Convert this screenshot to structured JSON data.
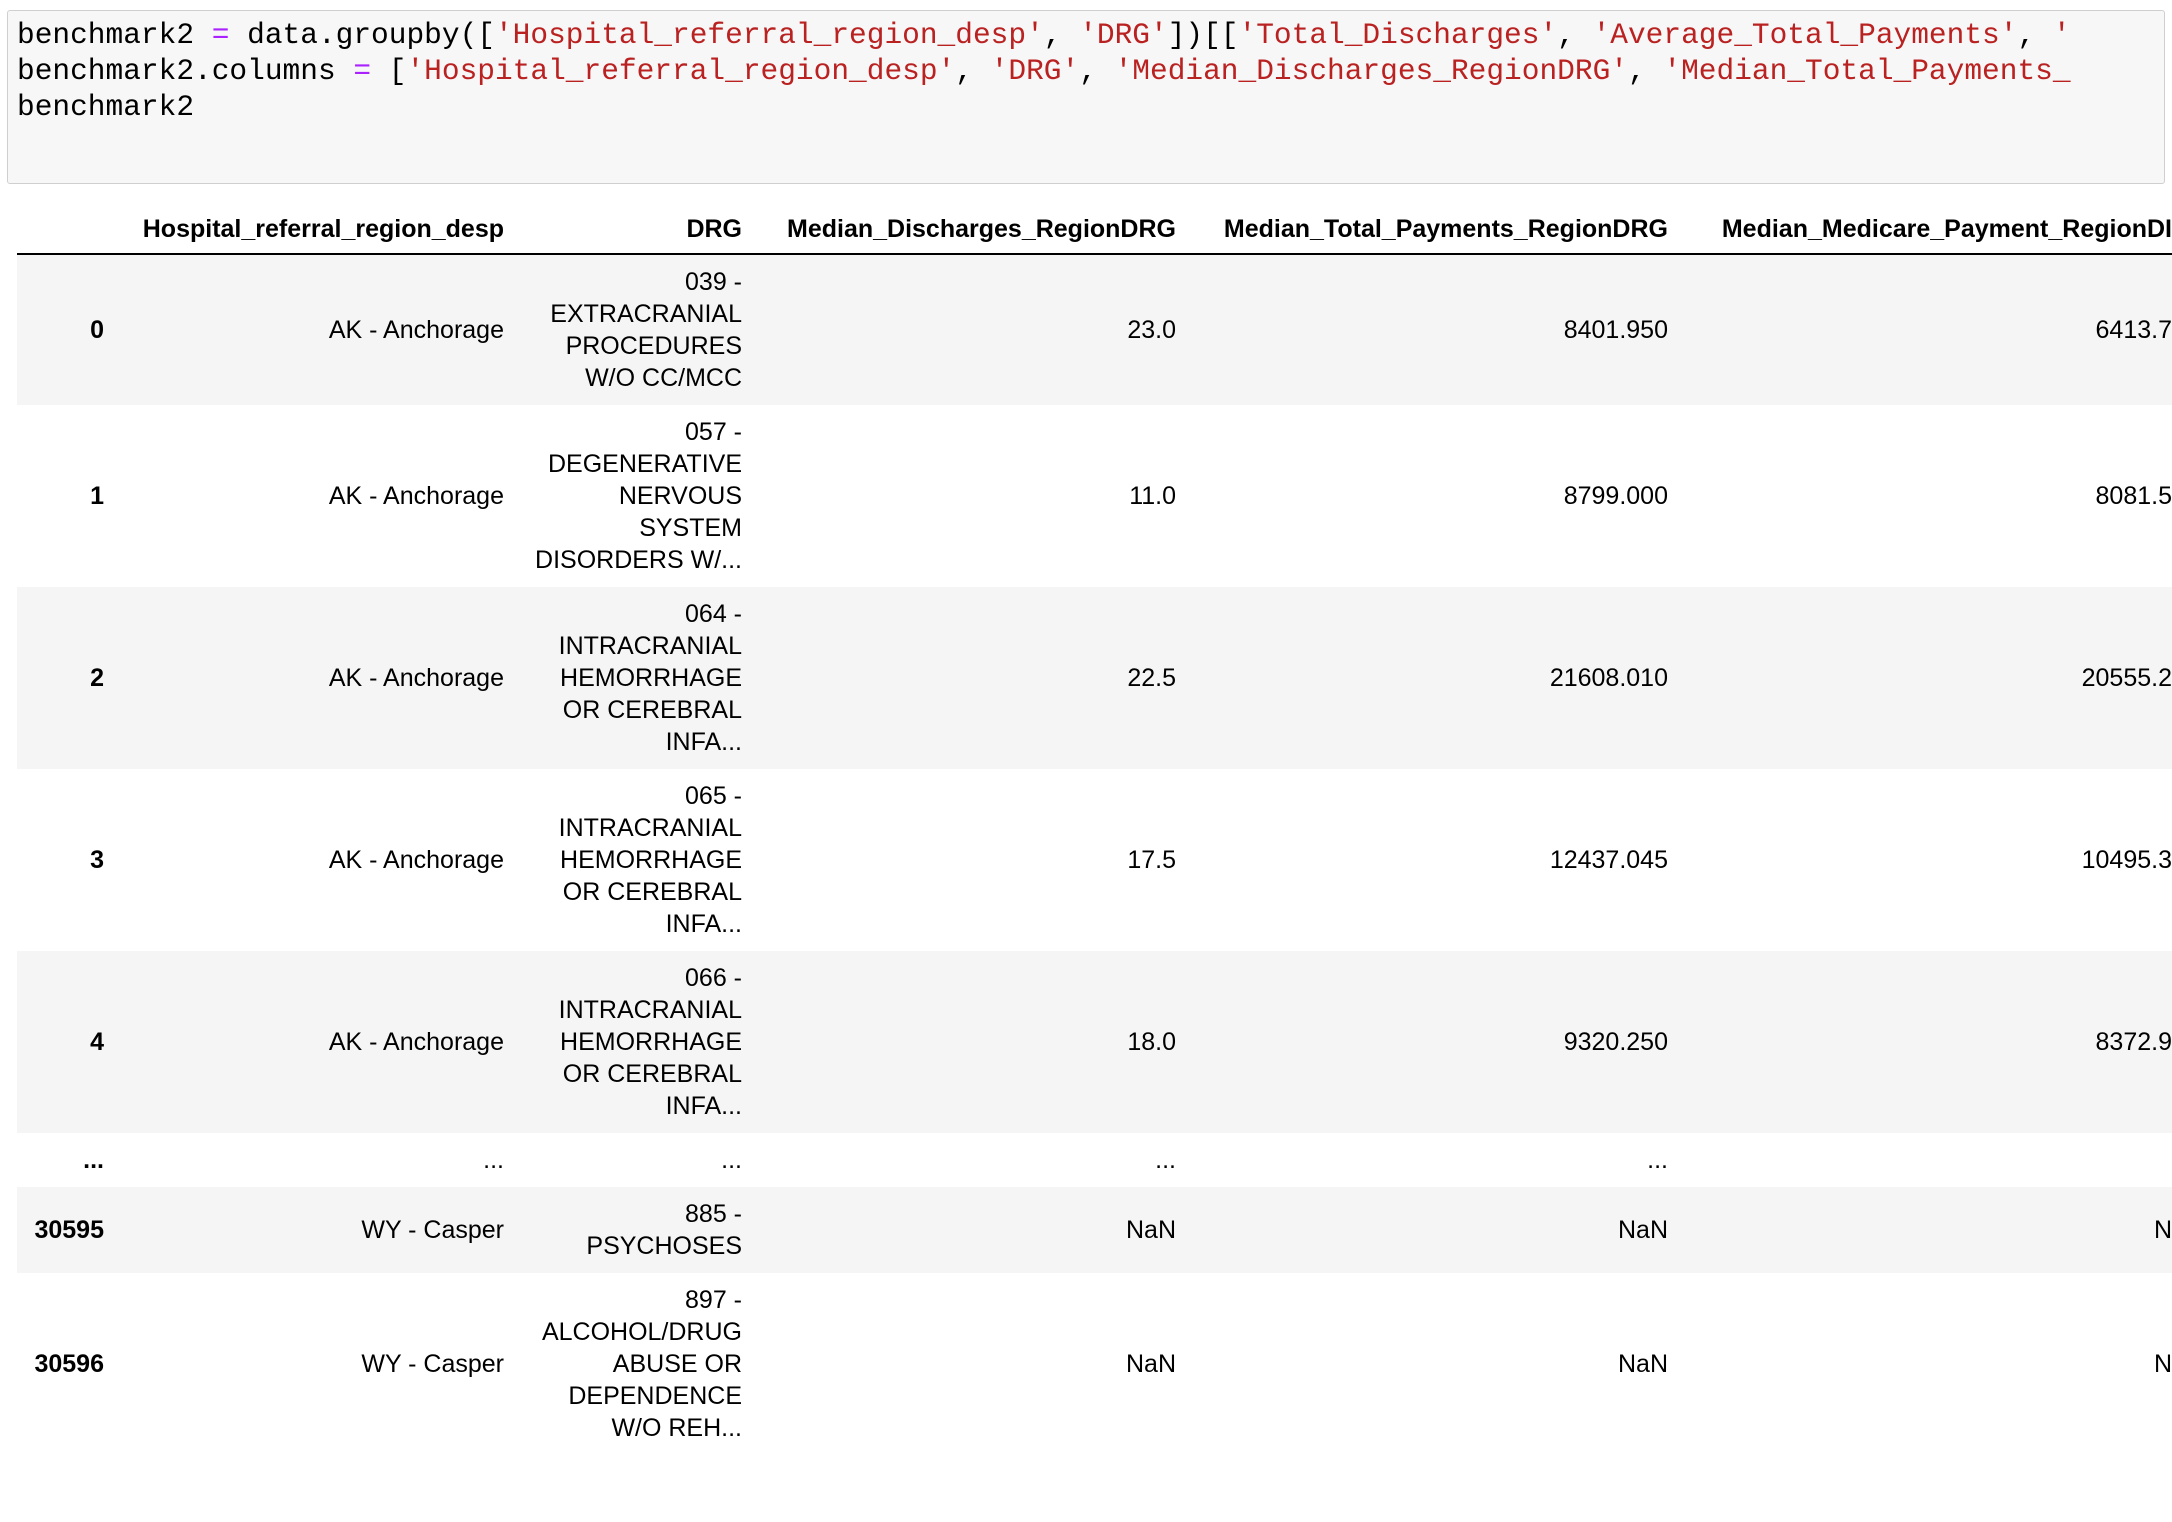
{
  "code": {
    "lines": [
      "benchmark2 = data.groupby(['Hospital_referral_region_desp', 'DRG'])[['Total_Discharges', 'Average_Total_Payments', '",
      "benchmark2.columns = ['Hospital_referral_region_desp', 'DRG', 'Median_Discharges_RegionDRG', 'Median_Total_Payments_",
      "benchmark2"
    ]
  },
  "table": {
    "columns": [
      "Hospital_referral_region_desp",
      "DRG",
      "Median_Discharges_RegionDRG",
      "Median_Total_Payments_RegionDRG",
      "Median_Medicare_Payment_RegionDI"
    ],
    "rows": [
      [
        "0",
        "AK - Anchorage",
        "039 - EXTRACRANIAL PROCEDURES W/O CC/MCC",
        "23.0",
        "8401.950",
        "6413.7"
      ],
      [
        "1",
        "AK - Anchorage",
        "057 - DEGENERATIVE NERVOUS SYSTEM DISORDERS W/...",
        "11.0",
        "8799.000",
        "8081.5"
      ],
      [
        "2",
        "AK - Anchorage",
        "064 - INTRACRANIAL HEMORRHAGE OR CEREBRAL INFA...",
        "22.5",
        "21608.010",
        "20555.2"
      ],
      [
        "3",
        "AK - Anchorage",
        "065 - INTRACRANIAL HEMORRHAGE OR CEREBRAL INFA...",
        "17.5",
        "12437.045",
        "10495.3"
      ],
      [
        "4",
        "AK - Anchorage",
        "066 - INTRACRANIAL HEMORRHAGE OR CEREBRAL INFA...",
        "18.0",
        "9320.250",
        "8372.9"
      ],
      [
        "...",
        "...",
        "...",
        "...",
        "..."
      ],
      [
        "30595",
        "WY - Casper",
        "885 - PSYCHOSES",
        "NaN",
        "NaN",
        "N"
      ],
      [
        "30596",
        "WY - Casper",
        "897 - ALCOHOL/DRUG ABUSE OR DEPENDENCE W/O REH...",
        "NaN",
        "NaN",
        "N"
      ]
    ]
  }
}
